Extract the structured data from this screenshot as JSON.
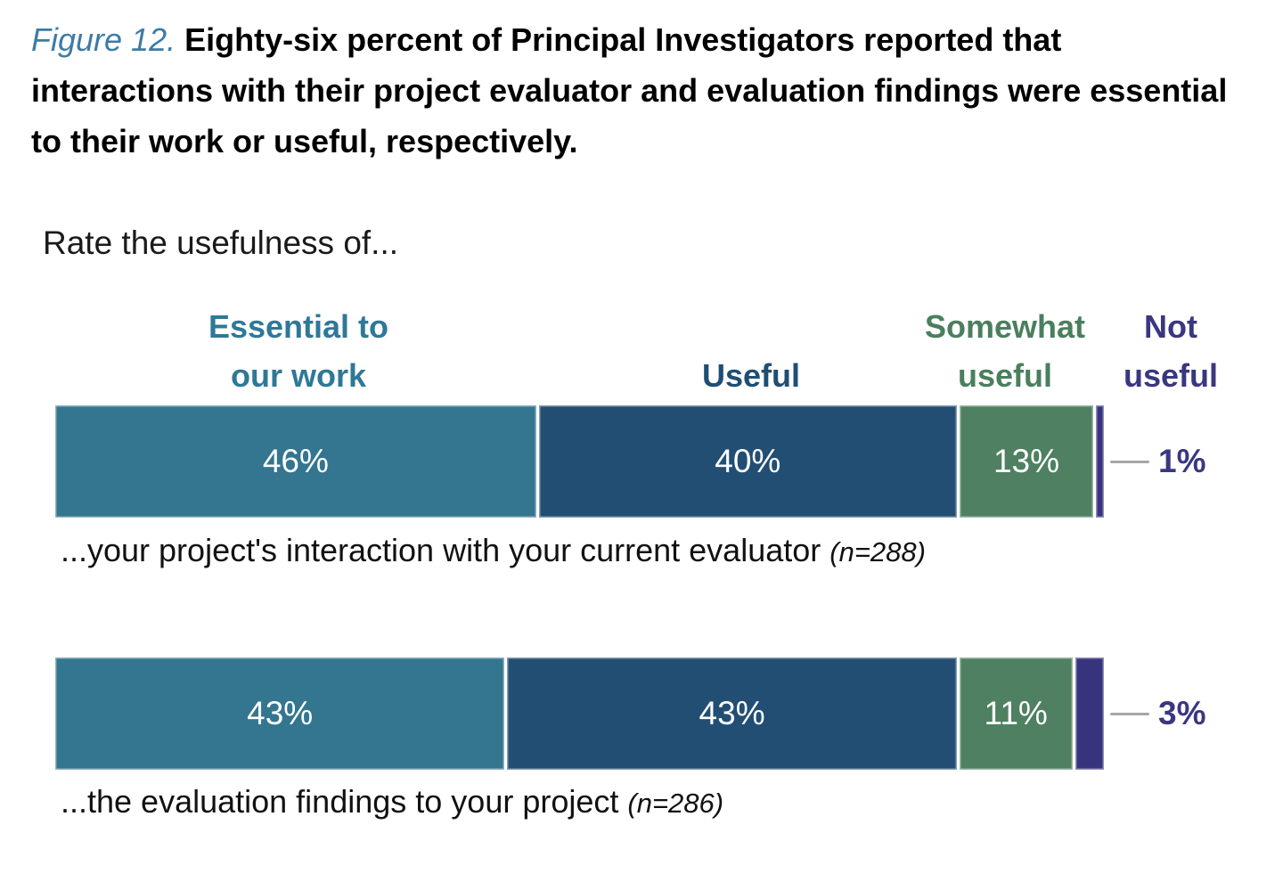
{
  "figure": {
    "label": "Figure 12.",
    "title": "Eighty-six percent of Principal Investigators reported that interactions with their project evaluator and evaluation findings were essential to their work or useful, respectively."
  },
  "prompt": "Rate the usefulness of...",
  "chart_data": {
    "type": "bar",
    "variant": "horizontal-stacked-100",
    "unit": "percent",
    "xlim": [
      0,
      100
    ],
    "grid": false,
    "legend_position": "top-as-column-headers",
    "categories": [
      {
        "name": "Essential to our work",
        "lines": [
          "Essential to",
          "our work"
        ],
        "color": "#34758F",
        "text_color": "#2E7898"
      },
      {
        "name": "Useful",
        "lines": [
          "Useful"
        ],
        "color": "#224E74",
        "text_color": "#1F4E74"
      },
      {
        "name": "Somewhat useful",
        "lines": [
          "Somewhat",
          "useful"
        ],
        "color": "#4E8061",
        "text_color": "#4A7F5E"
      },
      {
        "name": "Not useful",
        "lines": [
          "Not",
          "useful"
        ],
        "color": "#38337D",
        "text_color": "#3A3780"
      }
    ],
    "rows": [
      {
        "label": "...your project's interaction with your current evaluator",
        "n_label": "(n=288)",
        "values": [
          46,
          40,
          13,
          1
        ],
        "value_labels": [
          "46%",
          "40%",
          "13%",
          "1%"
        ]
      },
      {
        "label": "...the evaluation findings to your project",
        "n_label": "(n=286)",
        "values": [
          43,
          43,
          11,
          3
        ],
        "value_labels": [
          "43%",
          "43%",
          "11%",
          "3%"
        ]
      }
    ]
  },
  "colors": {
    "figure_label": "#3C7CA5",
    "title_text": "#000000",
    "body_text": "#1A1A1A",
    "bar_value_text": "#FFFFFF",
    "callout_line": "#A6A6A6",
    "callout_text": "#3A3780",
    "background": "#FFFFFF"
  }
}
